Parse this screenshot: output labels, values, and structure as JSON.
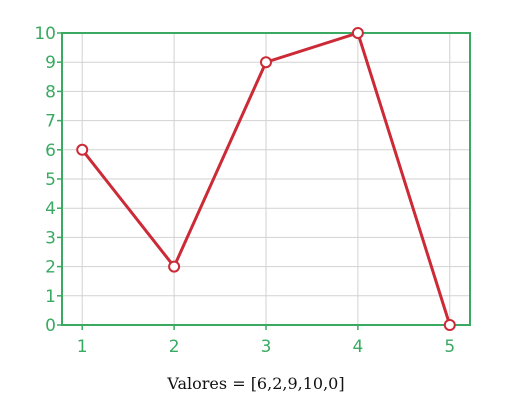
{
  "chart_data": {
    "type": "line",
    "x": [
      1,
      2,
      3,
      4,
      5
    ],
    "series": [
      {
        "values": [
          6,
          2,
          9,
          10,
          0
        ]
      }
    ],
    "x_ticks": [
      "1",
      "2",
      "3",
      "4",
      "5"
    ],
    "y_ticks": [
      "0",
      "1",
      "2",
      "3",
      "4",
      "5",
      "6",
      "7",
      "8",
      "9",
      "10"
    ],
    "xlim": [
      0.78,
      5.22
    ],
    "ylim": [
      0,
      10
    ],
    "grid": true,
    "xlabel": "Valores = [6,2,9,10,0]",
    "ylabel": "",
    "title": ""
  },
  "colors": {
    "line": "#cc2a36",
    "marker_fill": "#ffffff",
    "axes": "#3aaa62",
    "grid": "#d2d2d2",
    "tick_text": "#3aaa62",
    "caption_text": "#111111"
  }
}
